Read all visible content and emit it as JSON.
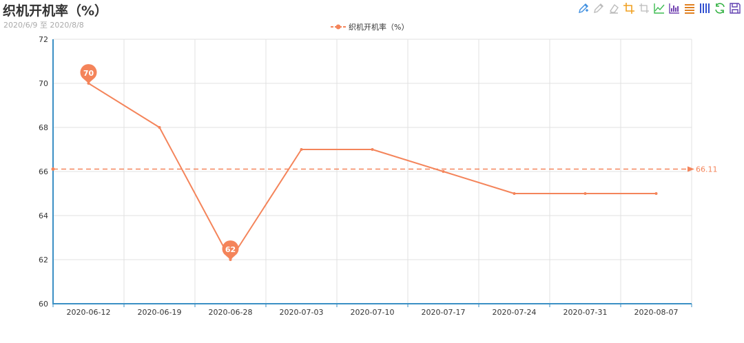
{
  "title": "织机开机率（%）",
  "subtitle": "2020/6/9 至 2020/8/8",
  "toolbox": {
    "icons": [
      "pencil-add-icon",
      "pencil-icon",
      "eraser-icon",
      "crop-icon",
      "crop-reset-icon",
      "line-chart-icon",
      "bar-chart-icon",
      "stack-icon",
      "tiled-icon",
      "refresh-icon",
      "save-icon"
    ],
    "colors": [
      "#3f8fe0",
      "#bbbbbb",
      "#bbbbbb",
      "#f0a020",
      "#bbbbbb",
      "#3cbc50",
      "#7040b0",
      "#e08020",
      "#3050d0",
      "#30b040",
      "#6040b0"
    ]
  },
  "chart_data": {
    "type": "line",
    "categories": [
      "2020-06-12",
      "2020-06-19",
      "2020-06-28",
      "2020-07-03",
      "2020-07-10",
      "2020-07-17",
      "2020-07-24",
      "2020-07-31",
      "2020-08-07"
    ],
    "series": [
      {
        "name": "织机开机率（%）",
        "values": [
          70,
          68,
          62,
          67,
          67,
          66,
          65,
          65,
          65
        ],
        "color": "#f4845a"
      }
    ],
    "ylim": [
      60,
      72
    ],
    "yticks": [
      "60",
      "62",
      "64",
      "66",
      "68",
      "70",
      "72"
    ],
    "max_point": {
      "label": "70"
    },
    "min_point": {
      "label": "62"
    },
    "average_line": {
      "value": 66.11,
      "label": "66.11"
    },
    "grid": true,
    "legend_position": "top-center"
  }
}
